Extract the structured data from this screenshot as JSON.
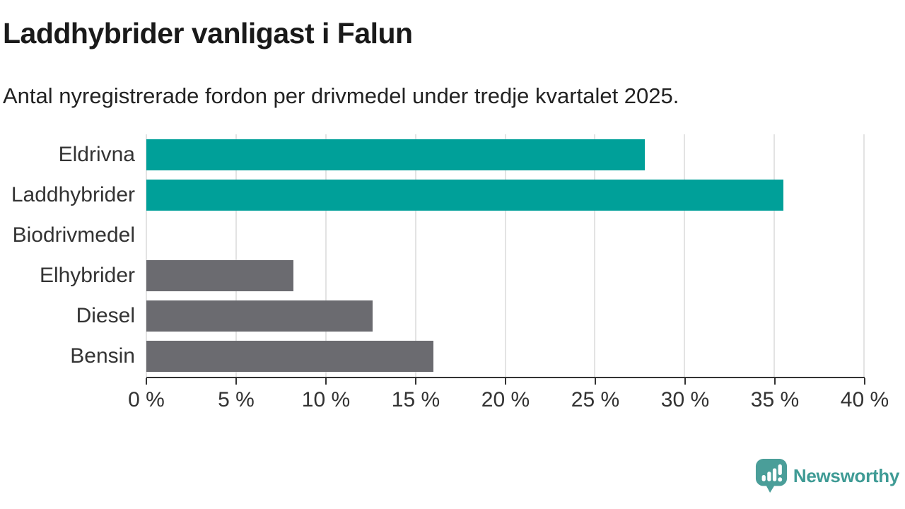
{
  "header": {
    "title": "Laddhybrider vanligast i Falun",
    "subtitle": "Antal nyregistrerade fordon per drivmedel under tredje kvartalet 2025."
  },
  "chart_data": {
    "type": "bar",
    "orientation": "horizontal",
    "title": "Laddhybrider vanligast i Falun",
    "subtitle": "Antal nyregistrerade fordon per drivmedel under tredje kvartalet 2025.",
    "categories": [
      "Eldrivna",
      "Laddhybrider",
      "Biodrivmedel",
      "Elhybrider",
      "Diesel",
      "Bensin"
    ],
    "values": [
      27.8,
      35.5,
      0,
      8.2,
      12.6,
      16.0
    ],
    "unit": "%",
    "xlabel": "",
    "ylabel": "",
    "xlim": [
      0,
      40
    ],
    "x_ticks": [
      0,
      5,
      10,
      15,
      20,
      25,
      30,
      35,
      40
    ],
    "x_tick_labels": [
      "0 %",
      "5 %",
      "10 %",
      "15 %",
      "20 %",
      "25 %",
      "30 %",
      "35 %",
      "40 %"
    ],
    "bar_colors": [
      "#00a099",
      "#00a099",
      "#6b6b70",
      "#6b6b70",
      "#6b6b70",
      "#6b6b70"
    ],
    "grid": true,
    "legend": false
  },
  "colors": {
    "highlight_teal": "#00a099",
    "neutral_gray": "#6b6b70",
    "gridline": "#e3e3e3",
    "axis": "#333333",
    "title_text": "#1a1a1a",
    "body_text": "#333333"
  },
  "footer": {
    "brand": "Newsworthy",
    "brand_color": "#3f9b95",
    "logo_color": "#4a9e99"
  }
}
